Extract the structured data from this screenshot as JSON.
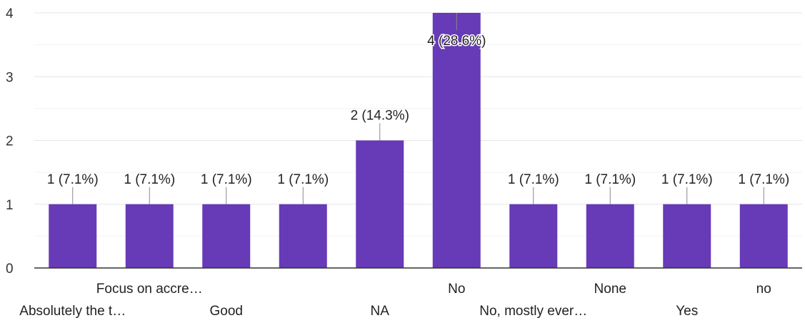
{
  "chart_data": {
    "type": "bar",
    "title": "",
    "xlabel": "",
    "ylabel": "",
    "ylim": [
      0,
      4
    ],
    "yticks": [
      0,
      1,
      2,
      3,
      4
    ],
    "grid": true,
    "legend": "none",
    "bar_color": "#673ab7",
    "categories": [
      "Absolutely the t…",
      "Focus on accre…",
      "Good",
      "",
      "NA",
      "No",
      "No, mostly ever…",
      "None",
      "Yes",
      "no"
    ],
    "values": [
      1,
      1,
      1,
      1,
      2,
      4,
      1,
      1,
      1,
      1
    ],
    "data_labels": [
      "1 (7.1%)",
      "1 (7.1%)",
      "1 (7.1%)",
      "1 (7.1%)",
      "2 (14.3%)",
      "4 (28.6%)",
      "1 (7.1%)",
      "1 (7.1%)",
      "1 (7.1%)",
      "1 (7.1%)"
    ]
  }
}
